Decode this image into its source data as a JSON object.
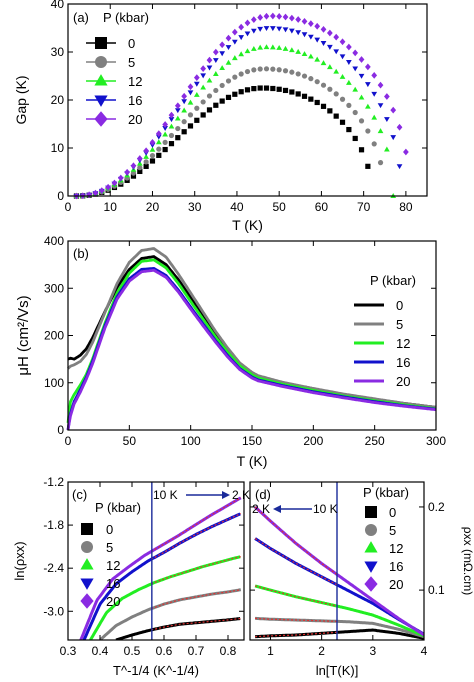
{
  "colors": {
    "p0": "#000000",
    "p5": "#808080",
    "p12": "#22ee22",
    "p16": "#1111cc",
    "p20": "#8a2be2",
    "fit": "#e03030",
    "marker_line": "#1a2a9a"
  },
  "chart_data": [
    {
      "panel": "a",
      "type": "scatter",
      "panel_label": "(a)",
      "xlabel": "T (K)",
      "ylabel": "Gap (K)",
      "xlim": [
        0,
        85
      ],
      "ylim": [
        0,
        40
      ],
      "xticks": [
        0,
        10,
        20,
        30,
        40,
        50,
        60,
        70,
        80
      ],
      "yticks": [
        0,
        10,
        20,
        30,
        40
      ],
      "legend_title": "P (kbar)",
      "legend_position": "top-left",
      "markers": [
        "square",
        "circle",
        "triangle-up",
        "triangle-down",
        "diamond"
      ],
      "series": [
        {
          "name": "0",
          "peak_x": 46,
          "peak_y": 22.5,
          "x_start": 2,
          "x_end": 72
        },
        {
          "name": "5",
          "peak_x": 46.5,
          "peak_y": 26.5,
          "x_start": 2,
          "x_end": 75
        },
        {
          "name": "12",
          "peak_x": 47,
          "peak_y": 31,
          "x_start": 2,
          "x_end": 77
        },
        {
          "name": "16",
          "peak_x": 47.5,
          "peak_y": 35,
          "x_start": 2,
          "x_end": 79
        },
        {
          "name": "20",
          "peak_x": 48,
          "peak_y": 37.5,
          "x_start": 2,
          "x_end": 81
        }
      ]
    },
    {
      "panel": "b",
      "type": "line",
      "panel_label": "(b)",
      "xlabel": "T (K)",
      "ylabel": "μH (cm²/Vs)",
      "xlim": [
        0,
        300
      ],
      "ylim": [
        0,
        400
      ],
      "xticks": [
        0,
        50,
        100,
        150,
        200,
        250,
        300
      ],
      "yticks": [
        0,
        100,
        200,
        300,
        400
      ],
      "legend_title": "P (kbar)",
      "legend_position": "right",
      "series": [
        {
          "name": "0",
          "x": [
            0,
            2,
            5,
            10,
            15,
            20,
            30,
            40,
            50,
            60,
            70,
            80,
            90,
            100,
            110,
            120,
            130,
            140,
            150,
            155,
            175,
            200,
            225,
            250,
            275,
            300
          ],
          "values": [
            150,
            152,
            150,
            158,
            172,
            195,
            250,
            302,
            340,
            363,
            367,
            350,
            318,
            280,
            242,
            205,
            170,
            140,
            120,
            113,
            100,
            87,
            75,
            65,
            56,
            48
          ]
        },
        {
          "name": "5",
          "x": [
            0,
            2,
            5,
            10,
            15,
            20,
            30,
            40,
            50,
            60,
            70,
            80,
            90,
            100,
            110,
            120,
            130,
            140,
            150,
            155,
            175,
            200,
            225,
            250,
            275,
            300
          ],
          "values": [
            130,
            135,
            138,
            145,
            160,
            185,
            248,
            310,
            355,
            380,
            384,
            366,
            330,
            290,
            250,
            210,
            174,
            142,
            122,
            115,
            101,
            88,
            76,
            66,
            56,
            48
          ]
        },
        {
          "name": "12",
          "x": [
            0,
            2,
            5,
            10,
            15,
            20,
            30,
            40,
            50,
            60,
            70,
            80,
            90,
            100,
            110,
            120,
            130,
            140,
            150,
            155,
            175,
            200,
            225,
            250,
            275,
            300
          ],
          "values": [
            15,
            60,
            75,
            95,
            118,
            150,
            225,
            290,
            332,
            357,
            360,
            343,
            310,
            272,
            235,
            198,
            165,
            136,
            117,
            110,
            97,
            84,
            72,
            62,
            53,
            45
          ]
        },
        {
          "name": "16",
          "x": [
            0,
            2,
            5,
            10,
            15,
            20,
            30,
            40,
            50,
            60,
            70,
            80,
            90,
            100,
            110,
            120,
            130,
            140,
            150,
            155,
            175,
            200,
            225,
            250,
            275,
            300
          ],
          "values": [
            0,
            35,
            60,
            85,
            112,
            145,
            220,
            282,
            320,
            340,
            342,
            327,
            296,
            260,
            225,
            190,
            158,
            130,
            112,
            106,
            94,
            81,
            70,
            60,
            51,
            44
          ]
        },
        {
          "name": "20",
          "x": [
            0,
            2,
            5,
            10,
            15,
            20,
            30,
            40,
            50,
            60,
            70,
            80,
            90,
            100,
            110,
            120,
            130,
            140,
            150,
            155,
            175,
            200,
            225,
            250,
            275,
            300
          ],
          "values": [
            0,
            30,
            55,
            80,
            108,
            140,
            215,
            277,
            315,
            335,
            338,
            323,
            292,
            256,
            221,
            187,
            155,
            128,
            110,
            104,
            92,
            79,
            68,
            58,
            50,
            43
          ]
        }
      ]
    },
    {
      "panel": "c",
      "type": "scatter",
      "panel_label": "(c)",
      "xlabel": "T^-1/4 (K^-1/4)",
      "ylabel": "ln(ρxx)",
      "xlim": [
        0.3,
        0.85
      ],
      "ylim": [
        -3.4,
        -1.2
      ],
      "xticks": [
        0.3,
        0.4,
        0.5,
        0.6,
        0.7,
        0.8
      ],
      "yticks": [
        -3.0,
        -2.4,
        -1.8,
        -1.2
      ],
      "legend_title": "P (kbar)",
      "legend_position": "top-left",
      "vertical_line_x": 0.562,
      "annotation": "10 K",
      "annotation_end": "2 K",
      "series": [
        {
          "name": "0",
          "x": [
            0.45,
            0.5,
            0.55,
            0.6,
            0.65,
            0.7,
            0.75,
            0.8,
            0.84
          ],
          "values": [
            -3.4,
            -3.33,
            -3.27,
            -3.22,
            -3.18,
            -3.16,
            -3.14,
            -3.12,
            -3.1
          ]
        },
        {
          "name": "5",
          "x": [
            0.4,
            0.45,
            0.5,
            0.55,
            0.6,
            0.65,
            0.7,
            0.75,
            0.8,
            0.84
          ],
          "values": [
            -3.4,
            -3.2,
            -3.08,
            -2.98,
            -2.9,
            -2.84,
            -2.8,
            -2.76,
            -2.73,
            -2.7
          ]
        },
        {
          "name": "12",
          "x": [
            0.37,
            0.42,
            0.47,
            0.52,
            0.57,
            0.62,
            0.67,
            0.72,
            0.77,
            0.82,
            0.84
          ],
          "values": [
            -3.4,
            -3.02,
            -2.82,
            -2.7,
            -2.6,
            -2.52,
            -2.45,
            -2.38,
            -2.32,
            -2.26,
            -2.24
          ]
        },
        {
          "name": "16",
          "x": [
            0.35,
            0.4,
            0.45,
            0.5,
            0.55,
            0.6,
            0.65,
            0.7,
            0.75,
            0.8,
            0.84
          ],
          "values": [
            -3.4,
            -2.9,
            -2.62,
            -2.45,
            -2.3,
            -2.18,
            -2.05,
            -1.93,
            -1.82,
            -1.72,
            -1.64
          ]
        },
        {
          "name": "20",
          "x": [
            0.34,
            0.39,
            0.44,
            0.49,
            0.54,
            0.59,
            0.64,
            0.69,
            0.74,
            0.79,
            0.84
          ],
          "values": [
            -3.4,
            -2.85,
            -2.55,
            -2.38,
            -2.22,
            -2.09,
            -1.96,
            -1.82,
            -1.68,
            -1.55,
            -1.42
          ]
        }
      ]
    },
    {
      "panel": "d",
      "type": "scatter",
      "panel_label": "(d)",
      "xlabel": "ln[T(K)]",
      "ylabel": "ρxx (mΩ.cm)",
      "xlim": [
        0.6,
        4.0
      ],
      "ylim": [
        0.04,
        0.23
      ],
      "xticks": [
        1,
        2,
        3,
        4
      ],
      "yticks": [
        0.1,
        0.2
      ],
      "legend_title": "P (kbar)",
      "legend_position": "top-right",
      "vertical_line_x": 2.3,
      "annotation": "10 K",
      "annotation_end": "2 K",
      "series": [
        {
          "name": "0",
          "x": [
            0.7,
            1.0,
            1.5,
            2.0,
            2.5,
            3.0,
            3.5,
            4.0
          ],
          "values": [
            0.044,
            0.045,
            0.046,
            0.048,
            0.05,
            0.052,
            0.048,
            0.042
          ]
        },
        {
          "name": "5",
          "x": [
            0.7,
            1.0,
            1.5,
            2.0,
            2.5,
            3.0,
            3.5,
            4.0
          ],
          "values": [
            0.066,
            0.065,
            0.064,
            0.063,
            0.062,
            0.06,
            0.053,
            0.044
          ]
        },
        {
          "name": "12",
          "x": [
            0.7,
            1.0,
            1.5,
            2.0,
            2.5,
            3.0,
            3.5,
            4.0
          ],
          "values": [
            0.105,
            0.1,
            0.092,
            0.085,
            0.078,
            0.07,
            0.058,
            0.045
          ]
        },
        {
          "name": "16",
          "x": [
            0.7,
            1.0,
            1.5,
            2.0,
            2.5,
            3.0,
            3.5,
            4.0
          ],
          "values": [
            0.162,
            0.15,
            0.132,
            0.116,
            0.1,
            0.084,
            0.065,
            0.047
          ]
        },
        {
          "name": "20",
          "x": [
            0.7,
            1.0,
            1.5,
            2.0,
            2.5,
            3.0,
            3.5,
            4.0
          ],
          "values": [
            0.2,
            0.183,
            0.156,
            0.132,
            0.11,
            0.088,
            0.066,
            0.046
          ]
        }
      ]
    }
  ]
}
